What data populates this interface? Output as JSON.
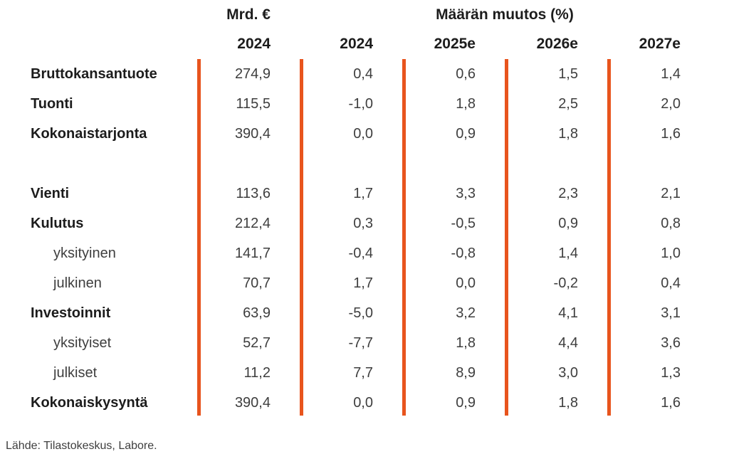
{
  "colors": {
    "accent": "#e8541d",
    "heading_text": "#1c1c1c",
    "value_text": "#3e3e3e"
  },
  "table": {
    "group_headers": {
      "mrd": "Mrd. €",
      "muutos": "Määrän muutos (%)"
    },
    "col_headers": [
      "2024",
      "2024",
      "2025e",
      "2026e",
      "2027e"
    ],
    "rows": [
      {
        "label": "Bruttokansantuote",
        "style": "main",
        "spacer": false,
        "values": [
          "274,9",
          "0,4",
          "0,6",
          "1,5",
          "1,4"
        ]
      },
      {
        "label": "Tuonti",
        "style": "main",
        "spacer": false,
        "values": [
          "115,5",
          "-1,0",
          "1,8",
          "2,5",
          "2,0"
        ]
      },
      {
        "label": "Kokonaistarjonta",
        "style": "main",
        "spacer": false,
        "values": [
          "390,4",
          "0,0",
          "0,9",
          "1,8",
          "1,6"
        ]
      },
      {
        "label": "",
        "style": "main",
        "spacer": true,
        "values": [
          "",
          "",
          "",
          "",
          ""
        ]
      },
      {
        "label": "Vienti",
        "style": "main",
        "spacer": false,
        "values": [
          "113,6",
          "1,7",
          "3,3",
          "2,3",
          "2,1"
        ]
      },
      {
        "label": "Kulutus",
        "style": "main",
        "spacer": false,
        "values": [
          "212,4",
          "0,3",
          "-0,5",
          "0,9",
          "0,8"
        ]
      },
      {
        "label": "yksityinen",
        "style": "sub",
        "spacer": false,
        "values": [
          "141,7",
          "-0,4",
          "-0,8",
          "1,4",
          "1,0"
        ]
      },
      {
        "label": "julkinen",
        "style": "sub",
        "spacer": false,
        "values": [
          "70,7",
          "1,7",
          "0,0",
          "-0,2",
          "0,4"
        ]
      },
      {
        "label": "Investoinnit",
        "style": "main",
        "spacer": false,
        "values": [
          "63,9",
          "-5,0",
          "3,2",
          "4,1",
          "3,1"
        ]
      },
      {
        "label": "yksityiset",
        "style": "sub",
        "spacer": false,
        "values": [
          "52,7",
          "-7,7",
          "1,8",
          "4,4",
          "3,6"
        ]
      },
      {
        "label": "julkiset",
        "style": "sub",
        "spacer": false,
        "values": [
          "11,2",
          "7,7",
          "8,9",
          "3,0",
          "1,3"
        ]
      },
      {
        "label": "Kokonaiskysyntä",
        "style": "main",
        "spacer": false,
        "values": [
          "390,4",
          "0,0",
          "0,9",
          "1,8",
          "1,6"
        ]
      }
    ],
    "source": "Lähde: Tilastokeskus, Labore."
  },
  "chart_data": {
    "type": "table",
    "title": "",
    "column_groups": [
      {
        "label": "Mrd. €",
        "span": 1
      },
      {
        "label": "Määrän muutos (%)",
        "span": 4
      }
    ],
    "columns": [
      "2024",
      "2024",
      "2025e",
      "2026e",
      "2027e"
    ],
    "rows": [
      {
        "label": "Bruttokansantuote",
        "values": [
          274.9,
          0.4,
          0.6,
          1.5,
          1.4
        ]
      },
      {
        "label": "Tuonti",
        "values": [
          115.5,
          -1.0,
          1.8,
          2.5,
          2.0
        ]
      },
      {
        "label": "Kokonaistarjonta",
        "values": [
          390.4,
          0.0,
          0.9,
          1.8,
          1.6
        ]
      },
      {
        "label": "Vienti",
        "values": [
          113.6,
          1.7,
          3.3,
          2.3,
          2.1
        ]
      },
      {
        "label": "Kulutus",
        "values": [
          212.4,
          0.3,
          -0.5,
          0.9,
          0.8
        ]
      },
      {
        "label": "yksityinen",
        "values": [
          141.7,
          -0.4,
          -0.8,
          1.4,
          1.0
        ]
      },
      {
        "label": "julkinen",
        "values": [
          70.7,
          1.7,
          0.0,
          -0.2,
          0.4
        ]
      },
      {
        "label": "Investoinnit",
        "values": [
          63.9,
          -5.0,
          3.2,
          4.1,
          3.1
        ]
      },
      {
        "label": "yksityiset",
        "values": [
          52.7,
          -7.7,
          1.8,
          4.4,
          3.6
        ]
      },
      {
        "label": "julkiset",
        "values": [
          11.2,
          7.7,
          8.9,
          3.0,
          1.3
        ]
      },
      {
        "label": "Kokonaiskysyntä",
        "values": [
          390.4,
          0.0,
          0.9,
          1.8,
          1.6
        ]
      }
    ],
    "decimal_separator": ",",
    "source": "Lähde: Tilastokeskus, Labore."
  }
}
